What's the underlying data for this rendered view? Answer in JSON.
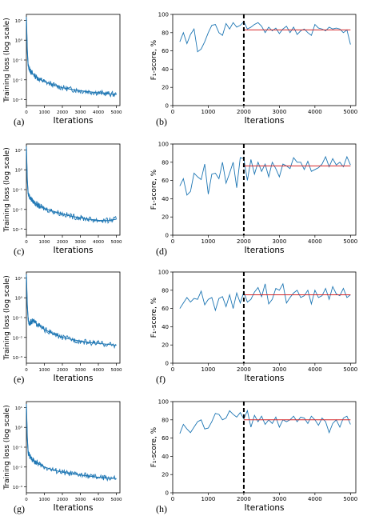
{
  "colors": {
    "series": "#1f77b4",
    "mean": "#d62728",
    "divider": "#000000",
    "loss_fill": "#a9cbe6"
  },
  "chart_data": [
    {
      "id": "a",
      "panel_label": "(a)",
      "type": "line",
      "yscale": "log",
      "xlabel": "Iterations",
      "ylabel": "Training loss (log scale)",
      "xlim": [
        0,
        5200
      ],
      "ylim": [
        0.0005,
        20
      ],
      "x_ticks": [
        "0",
        "1000",
        "2000",
        "3000",
        "4000",
        "5000"
      ],
      "y_ticks": [
        "10⁻³",
        "10⁻²",
        "10⁻¹",
        "10⁰",
        "10¹"
      ],
      "x": [
        0,
        50,
        100,
        200,
        300,
        500,
        700,
        1000,
        1500,
        2000,
        2500,
        3000,
        3500,
        4000,
        4500,
        5000
      ],
      "values": [
        15,
        0.3,
        0.05,
        0.03,
        0.022,
        0.015,
        0.011,
        0.008,
        0.0055,
        0.004,
        0.0033,
        0.0028,
        0.0025,
        0.0022,
        0.002,
        0.0018
      ]
    },
    {
      "id": "b",
      "panel_label": "(b)",
      "type": "line",
      "xlabel": "Iterations",
      "ylabel": "F₁-score, %",
      "xlim": [
        0,
        5150
      ],
      "ylim": [
        0,
        100
      ],
      "divider_x": 2000,
      "x_ticks": [
        "0",
        "1000",
        "2000",
        "3000",
        "4000",
        "5000"
      ],
      "y_ticks": [
        "0",
        "20",
        "40",
        "60",
        "80",
        "100"
      ],
      "x": [
        200,
        300,
        400,
        500,
        600,
        700,
        800,
        900,
        1000,
        1100,
        1200,
        1300,
        1400,
        1500,
        1600,
        1700,
        1800,
        1900,
        2000,
        2100,
        2200,
        2300,
        2400,
        2500,
        2600,
        2700,
        2800,
        2900,
        3000,
        3100,
        3200,
        3300,
        3400,
        3500,
        3600,
        3700,
        3800,
        3900,
        4000,
        4100,
        4200,
        4300,
        4400,
        4500,
        4600,
        4700,
        4800,
        4900,
        5000
      ],
      "values": [
        70,
        80,
        68,
        78,
        84,
        59,
        62,
        70,
        80,
        88,
        89,
        80,
        77,
        90,
        84,
        91,
        86,
        88,
        92,
        84,
        86,
        89,
        91,
        87,
        80,
        86,
        82,
        85,
        79,
        84,
        87,
        80,
        86,
        78,
        82,
        84,
        80,
        77,
        89,
        85,
        84,
        82,
        86,
        84,
        85,
        84,
        80,
        83,
        67
      ],
      "mean_line": {
        "x": [
          2000,
          5000
        ],
        "y": 83
      }
    },
    {
      "id": "c",
      "panel_label": "(c)",
      "type": "line",
      "yscale": "log",
      "xlabel": "Iterations",
      "ylabel": "Training loss (log scale)",
      "xlim": [
        0,
        5200
      ],
      "ylim": [
        0.0005,
        20
      ],
      "x_ticks": [
        "0",
        "1000",
        "2000",
        "3000",
        "4000",
        "5000"
      ],
      "y_ticks": [
        "10⁻³",
        "10⁻²",
        "10⁻¹",
        "10⁰",
        "10¹"
      ],
      "x": [
        0,
        50,
        100,
        200,
        300,
        500,
        700,
        1000,
        1500,
        2000,
        2500,
        3000,
        3500,
        4000,
        4500,
        5000
      ],
      "values": [
        15,
        0.3,
        0.06,
        0.04,
        0.03,
        0.02,
        0.015,
        0.011,
        0.008,
        0.006,
        0.0045,
        0.0038,
        0.0032,
        0.0028,
        0.0027,
        0.0032
      ]
    },
    {
      "id": "d",
      "panel_label": "(d)",
      "type": "line",
      "xlabel": "Iterations",
      "ylabel": "F₁-score, %",
      "xlim": [
        0,
        5150
      ],
      "ylim": [
        0,
        100
      ],
      "divider_x": 2000,
      "x_ticks": [
        "0",
        "1000",
        "2000",
        "3000",
        "4000",
        "5000"
      ],
      "y_ticks": [
        "0",
        "20",
        "40",
        "60",
        "80",
        "100"
      ],
      "x": [
        200,
        300,
        400,
        500,
        600,
        700,
        800,
        900,
        1000,
        1100,
        1200,
        1300,
        1400,
        1500,
        1600,
        1700,
        1800,
        1900,
        2000,
        2100,
        2200,
        2300,
        2400,
        2500,
        2600,
        2700,
        2800,
        2900,
        3000,
        3100,
        3200,
        3300,
        3400,
        3500,
        3600,
        3700,
        3800,
        3900,
        4000,
        4100,
        4200,
        4300,
        4400,
        4500,
        4600,
        4700,
        4800,
        4900,
        5000
      ],
      "values": [
        54,
        62,
        44,
        48,
        68,
        64,
        61,
        78,
        45,
        67,
        68,
        62,
        80,
        57,
        68,
        80,
        52,
        85,
        84,
        60,
        83,
        67,
        80,
        70,
        78,
        64,
        80,
        73,
        64,
        78,
        76,
        73,
        85,
        80,
        80,
        72,
        81,
        70,
        72,
        74,
        78,
        86,
        75,
        84,
        77,
        80,
        75,
        86,
        77
      ],
      "mean_line": {
        "x": [
          2000,
          5000
        ],
        "y": 76
      }
    },
    {
      "id": "e",
      "panel_label": "(e)",
      "type": "line",
      "yscale": "log",
      "xlabel": "Iterations",
      "ylabel": "Training loss (log scale)",
      "xlim": [
        0,
        5200
      ],
      "ylim": [
        0.0005,
        20
      ],
      "x_ticks": [
        "0",
        "1000",
        "2000",
        "3000",
        "4000",
        "5000"
      ],
      "y_ticks": [
        "10⁻³",
        "10⁻²",
        "10⁻¹",
        "10⁰",
        "10¹"
      ],
      "x": [
        0,
        50,
        100,
        150,
        250,
        350,
        500,
        700,
        1000,
        1500,
        2000,
        2500,
        3000,
        3500,
        4000,
        4500,
        5000
      ],
      "values": [
        15,
        0.4,
        0.08,
        0.05,
        0.06,
        0.07,
        0.055,
        0.04,
        0.025,
        0.015,
        0.01,
        0.008,
        0.0065,
        0.0055,
        0.005,
        0.0045,
        0.004
      ]
    },
    {
      "id": "f",
      "panel_label": "(f)",
      "type": "line",
      "xlabel": "Iterations",
      "ylabel": "F₁-score, %",
      "xlim": [
        0,
        5150
      ],
      "ylim": [
        0,
        100
      ],
      "divider_x": 2000,
      "x_ticks": [
        "0",
        "1000",
        "2000",
        "3000",
        "4000",
        "5000"
      ],
      "y_ticks": [
        "0",
        "20",
        "40",
        "60",
        "80",
        "100"
      ],
      "x": [
        200,
        300,
        400,
        500,
        600,
        700,
        800,
        900,
        1000,
        1100,
        1200,
        1300,
        1400,
        1500,
        1600,
        1700,
        1800,
        1900,
        2000,
        2100,
        2200,
        2300,
        2400,
        2500,
        2600,
        2700,
        2800,
        2900,
        3000,
        3100,
        3200,
        3300,
        3400,
        3500,
        3600,
        3700,
        3800,
        3900,
        4000,
        4100,
        4200,
        4300,
        4400,
        4500,
        4600,
        4700,
        4800,
        4900,
        5000
      ],
      "values": [
        60,
        66,
        72,
        67,
        71,
        70,
        79,
        64,
        70,
        72,
        58,
        71,
        73,
        62,
        75,
        60,
        77,
        66,
        78,
        67,
        70,
        78,
        83,
        73,
        87,
        65,
        70,
        82,
        80,
        87,
        66,
        72,
        77,
        80,
        72,
        74,
        80,
        65,
        80,
        72,
        74,
        82,
        70,
        84,
        76,
        74,
        82,
        72,
        75
      ],
      "mean_line": {
        "x": [
          2000,
          5000
        ],
        "y": 75
      }
    },
    {
      "id": "g",
      "panel_label": "(g)",
      "type": "line",
      "yscale": "log",
      "xlabel": "Iterations",
      "ylabel": "Training loss (log scale)",
      "xlim": [
        0,
        5200
      ],
      "ylim": [
        0.0005,
        20
      ],
      "x_ticks": [
        "0",
        "1000",
        "2000",
        "3000",
        "4000",
        "5000"
      ],
      "y_ticks": [
        "10⁻³",
        "10⁻²",
        "10⁻¹",
        "10⁰",
        "10¹"
      ],
      "x": [
        0,
        50,
        100,
        200,
        300,
        500,
        700,
        1000,
        1500,
        2000,
        2500,
        3000,
        3500,
        4000,
        4500,
        5000
      ],
      "values": [
        15,
        0.3,
        0.05,
        0.035,
        0.025,
        0.018,
        0.014,
        0.01,
        0.007,
        0.0055,
        0.0045,
        0.004,
        0.0035,
        0.003,
        0.0028,
        0.0026
      ]
    },
    {
      "id": "h",
      "panel_label": "(h)",
      "type": "line",
      "xlabel": "Iterations",
      "ylabel": "F₁-score, %",
      "xlim": [
        0,
        5150
      ],
      "ylim": [
        0,
        100
      ],
      "divider_x": 2000,
      "x_ticks": [
        "0",
        "1000",
        "2000",
        "3000",
        "4000",
        "5000"
      ],
      "y_ticks": [
        "0",
        "20",
        "40",
        "60",
        "80",
        "100"
      ],
      "x": [
        200,
        300,
        400,
        500,
        600,
        700,
        800,
        900,
        1000,
        1100,
        1200,
        1300,
        1400,
        1500,
        1600,
        1700,
        1800,
        1900,
        2000,
        2100,
        2200,
        2300,
        2400,
        2500,
        2600,
        2700,
        2800,
        2900,
        3000,
        3100,
        3200,
        3300,
        3400,
        3500,
        3600,
        3700,
        3800,
        3900,
        4000,
        4100,
        4200,
        4300,
        4400,
        4500,
        4600,
        4700,
        4800,
        4900,
        5000
      ],
      "values": [
        65,
        75,
        70,
        66,
        72,
        78,
        80,
        70,
        71,
        78,
        87,
        86,
        80,
        82,
        90,
        86,
        83,
        88,
        81,
        90,
        72,
        85,
        78,
        84,
        75,
        80,
        76,
        83,
        72,
        80,
        78,
        80,
        84,
        78,
        83,
        82,
        76,
        84,
        80,
        74,
        82,
        78,
        66,
        76,
        80,
        72,
        82,
        84,
        75
      ],
      "mean_line": {
        "x": [
          2000,
          5000
        ],
        "y": 80
      }
    }
  ]
}
